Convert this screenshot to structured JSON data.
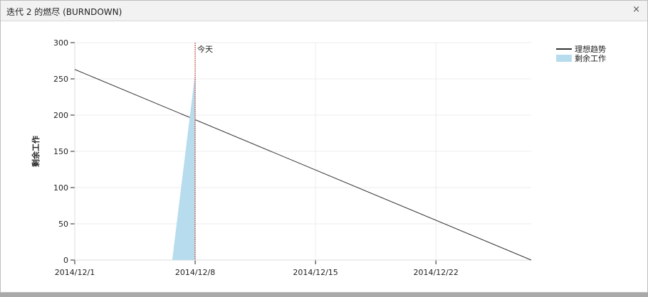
{
  "window": {
    "title": "迭代 2 的燃尽 (BURNDOWN)",
    "close_label": "×"
  },
  "chart_data": {
    "type": "area",
    "title": "",
    "ylabel": "剩余工作",
    "xlabel": "",
    "ylim": [
      0,
      300
    ],
    "yticks": [
      0,
      50,
      100,
      150,
      200,
      250,
      300
    ],
    "xlim": [
      "2014-12-01T00:00",
      "2014-12-27T13:00"
    ],
    "xticks": [
      {
        "date": "2014-12-01",
        "label": "2014/12/1"
      },
      {
        "date": "2014-12-08",
        "label": "2014/12/8"
      },
      {
        "date": "2014-12-15",
        "label": "2014/12/15"
      },
      {
        "date": "2014-12-22",
        "label": "2014/12/22"
      }
    ],
    "grid": true,
    "legend_position": "top-right",
    "today": {
      "date": "2014-12-08",
      "label": "今天",
      "color": "#c0392b"
    },
    "series": [
      {
        "name": "理想趋势",
        "kind": "line",
        "color": "#333333",
        "points": [
          [
            "2014-12-01T00:00",
            263
          ],
          [
            "2014-12-27T13:00",
            0
          ]
        ]
      },
      {
        "name": "剩余工作",
        "kind": "area",
        "color": "#b7dcee",
        "points": [
          [
            "2014-12-06T16:00",
            0
          ],
          [
            "2014-12-08T00:00",
            258
          ],
          [
            "2014-12-08T00:00",
            0
          ]
        ]
      }
    ]
  }
}
